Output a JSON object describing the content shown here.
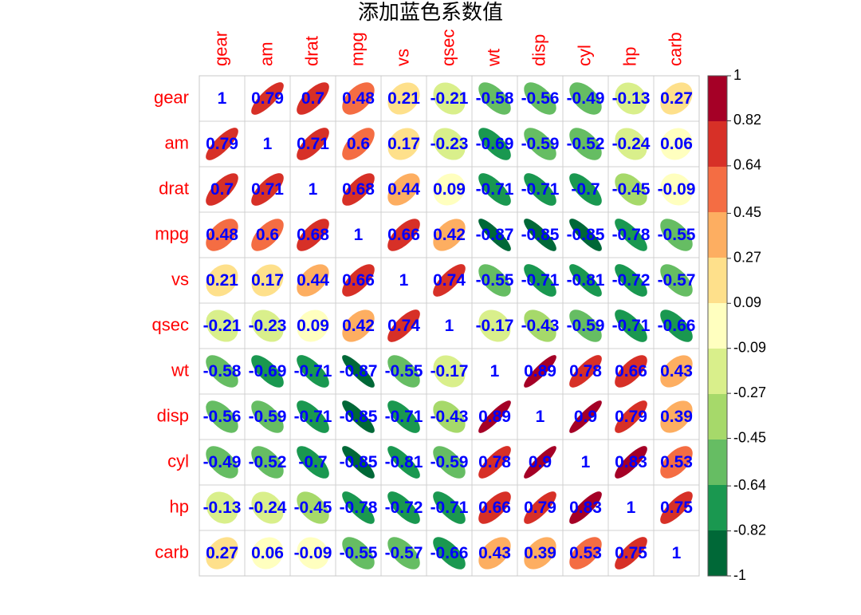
{
  "chart_data": {
    "type": "corrplot",
    "title": "添加蓝色系数值",
    "variables": [
      "gear",
      "am",
      "drat",
      "mpg",
      "vs",
      "qsec",
      "wt",
      "disp",
      "cyl",
      "hp",
      "carb"
    ],
    "matrix": [
      [
        1,
        0.79,
        0.7,
        0.48,
        0.21,
        -0.21,
        -0.58,
        -0.56,
        -0.49,
        -0.13,
        0.27
      ],
      [
        0.79,
        1,
        0.71,
        0.6,
        0.17,
        -0.23,
        -0.69,
        -0.59,
        -0.52,
        -0.24,
        0.06
      ],
      [
        0.7,
        0.71,
        1,
        0.68,
        0.44,
        0.09,
        -0.71,
        -0.71,
        -0.7,
        -0.45,
        -0.09
      ],
      [
        0.48,
        0.6,
        0.68,
        1,
        0.66,
        0.42,
        -0.87,
        -0.85,
        -0.85,
        -0.78,
        -0.55
      ],
      [
        0.21,
        0.17,
        0.44,
        0.66,
        1,
        0.74,
        -0.55,
        -0.71,
        -0.81,
        -0.72,
        -0.57
      ],
      [
        -0.21,
        -0.23,
        0.09,
        0.42,
        0.74,
        1,
        -0.17,
        -0.43,
        -0.59,
        -0.71,
        -0.66
      ],
      [
        -0.58,
        -0.69,
        -0.71,
        -0.87,
        -0.55,
        -0.17,
        1,
        0.89,
        0.78,
        0.66,
        0.43
      ],
      [
        -0.56,
        -0.59,
        -0.71,
        -0.85,
        -0.71,
        -0.43,
        0.89,
        1,
        0.9,
        0.79,
        0.39
      ],
      [
        -0.49,
        -0.52,
        -0.7,
        -0.85,
        -0.81,
        -0.59,
        0.78,
        0.9,
        1,
        0.83,
        0.53
      ],
      [
        -0.13,
        -0.24,
        -0.45,
        -0.78,
        -0.72,
        -0.71,
        0.66,
        0.79,
        0.83,
        1,
        0.75
      ],
      [
        0.27,
        0.06,
        -0.09,
        -0.55,
        -0.57,
        -0.66,
        0.43,
        0.39,
        0.53,
        0.75,
        1
      ]
    ],
    "colorbar": {
      "lim": [
        -1,
        1
      ],
      "ticks": [
        1,
        0.82,
        0.64,
        0.45,
        0.27,
        0.09,
        -0.09,
        -0.27,
        -0.45,
        -0.64,
        -0.82,
        -1
      ],
      "colors": [
        "#006837",
        "#1a9850",
        "#66bd63",
        "#a6d96a",
        "#d9ef8b",
        "#ffffbf",
        "#fee08b",
        "#fdae61",
        "#f46d43",
        "#d73027",
        "#a50026"
      ]
    },
    "label_color": "#ff0000",
    "value_label_color": "#0000ff"
  }
}
